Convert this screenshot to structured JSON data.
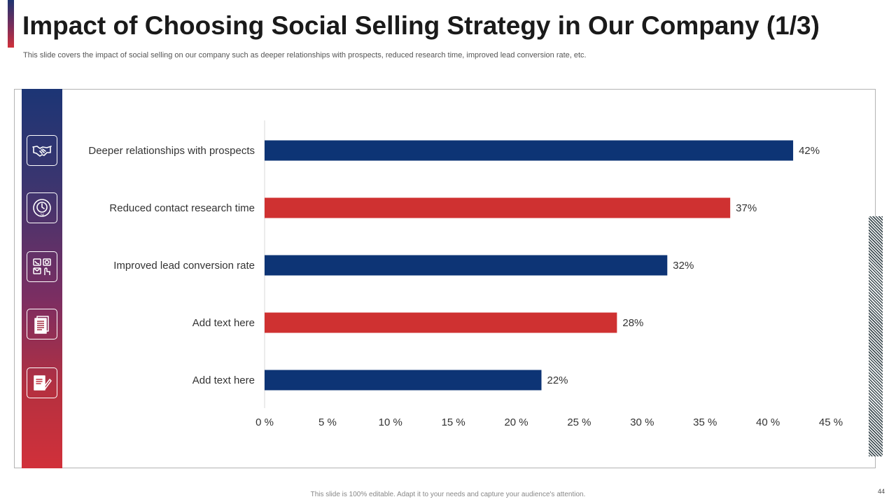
{
  "slide": {
    "title": "Impact of Choosing Social Selling Strategy in Our Company (1/3)",
    "subtitle": "This slide covers the impact of social selling on our company such as deeper relationships with prospects, reduced research time, improved lead conversion rate, etc.",
    "footer": "This slide is 100% editable. Adapt it to your needs and capture your audience's attention.",
    "page_number": "44"
  },
  "icons": [
    "handshake-icon",
    "clock-24-icon",
    "contact-methods-icon",
    "document-icon",
    "signed-document-icon"
  ],
  "colors": {
    "navy": "#0d3475",
    "red": "#cf3131",
    "title": "#1a1a1a",
    "strip_top": "#1c3575",
    "strip_bottom": "#d1303a"
  },
  "chart_data": {
    "type": "bar",
    "orientation": "horizontal",
    "categories": [
      "Deeper relationships with prospects",
      "Reduced contact research time",
      "Improved lead conversion rate",
      "Add text here",
      "Add text here"
    ],
    "values": [
      42,
      37,
      32,
      28,
      22
    ],
    "value_labels": [
      "42%",
      "37%",
      "32%",
      "28%",
      "22%"
    ],
    "bar_colors": [
      "#0d3475",
      "#cf3131",
      "#0d3475",
      "#cf3131",
      "#0d3475"
    ],
    "xlim": [
      0,
      45
    ],
    "xticks": [
      0,
      5,
      10,
      15,
      20,
      25,
      30,
      35,
      40,
      45
    ],
    "xtick_labels": [
      "0 %",
      "5 %",
      "10 %",
      "15 %",
      "20 %",
      "25 %",
      "30 %",
      "35 %",
      "40 %",
      "45 %"
    ],
    "grid": false,
    "legend": "none"
  }
}
